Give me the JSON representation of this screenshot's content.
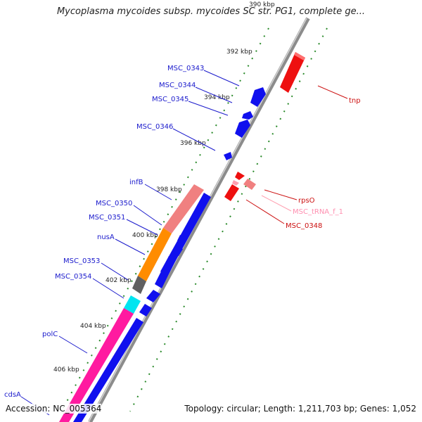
{
  "title": "Mycoplasma mycoides subsp. mycoides SC str. PG1, complete ge...",
  "footer": {
    "accession": "Accession: NC_005364",
    "summary": "Topology: circular; Length: 1,211,703 bp; Genes: 1,052"
  },
  "colors": {
    "cds_forward": "#1010ee",
    "cds_reverse": "#ee1010",
    "pseudo": "#f08080",
    "trna": "#ff9fb0",
    "rrna": "#ff8c00",
    "misc": "#808080",
    "cyan_feature": "#00e5f0",
    "magenta_feature": "#ff1aa0",
    "backbone": "#8c8c8c",
    "ticks": "#2a8a2a",
    "label_forward": "#1a1acc",
    "label_reverse": "#cc1010"
  },
  "ticks": [
    {
      "label": "390 kbp"
    },
    {
      "label": "392 kbp"
    },
    {
      "label": "394 kbp"
    },
    {
      "label": "396 kbp"
    },
    {
      "label": "398 kbp"
    },
    {
      "label": "400 kbp"
    },
    {
      "label": "402 kbp"
    },
    {
      "label": "404 kbp"
    },
    {
      "label": "406 kbp"
    }
  ],
  "gene_labels": {
    "left": [
      "MSC_0343",
      "MSC_0344",
      "MSC_0345",
      "MSC_0346",
      "infB",
      "MSC_0350",
      "MSC_0351",
      "nusA",
      "MSC_0353",
      "MSC_0354",
      "polC",
      "cdsA"
    ],
    "right": [
      "tnp",
      "rpsO",
      "MSC_tRNA_f_1",
      "MSC_0348"
    ]
  }
}
